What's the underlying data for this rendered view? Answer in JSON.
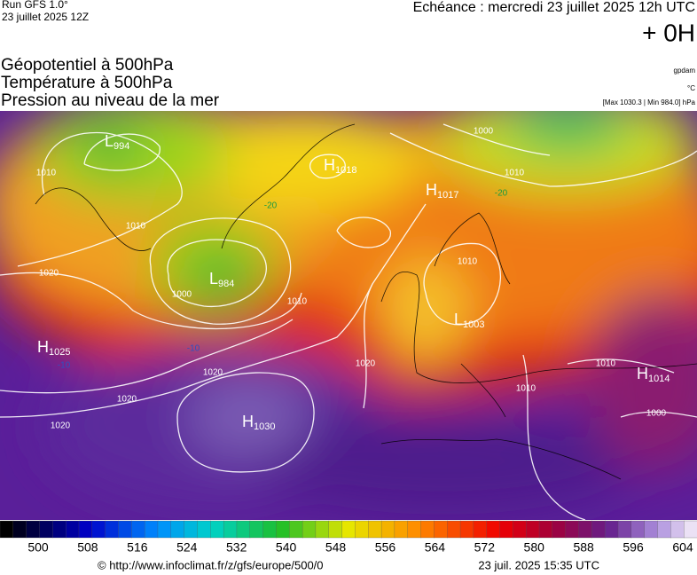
{
  "header": {
    "run": "Run GFS 1.0°",
    "date": "23 juillet 2025 12Z",
    "echeance": "Echéance : mercredi 23 juillet 2025 12h UTC",
    "offset": "+ 0H"
  },
  "titles": [
    "Géopotentiel à 500hPa",
    "Température à 500hPa",
    "Pression au niveau de la mer"
  ],
  "units": [
    "gpdam",
    "°C",
    "[Max 1030.3 | Min 984.0] hPa"
  ],
  "centers": [
    {
      "letter": "L",
      "value": 994
    },
    {
      "letter": "H",
      "value": 1018
    },
    {
      "letter": "H",
      "value": 1017
    },
    {
      "letter": "L",
      "value": 984
    },
    {
      "letter": "L",
      "value": 1003
    },
    {
      "letter": "H",
      "value": 1025
    },
    {
      "letter": "H",
      "value": 1014
    },
    {
      "letter": "H",
      "value": 1030
    }
  ],
  "isobar_labels": [
    1000,
    1010,
    1010,
    1010,
    1020,
    1000,
    1010,
    1020,
    1020,
    1020,
    1020,
    1010,
    1010,
    1000,
    1010
  ],
  "temperature_labels": [
    -20,
    -20,
    -10,
    -10
  ],
  "legend_ticks": [
    500,
    508,
    516,
    524,
    532,
    540,
    548,
    556,
    564,
    572,
    580,
    588,
    596,
    604
  ],
  "footer": {
    "url": "© http://www.infoclimat.fr/z/gfs/europe/500/0",
    "date": "23 juil. 2025 15:35 UTC"
  }
}
